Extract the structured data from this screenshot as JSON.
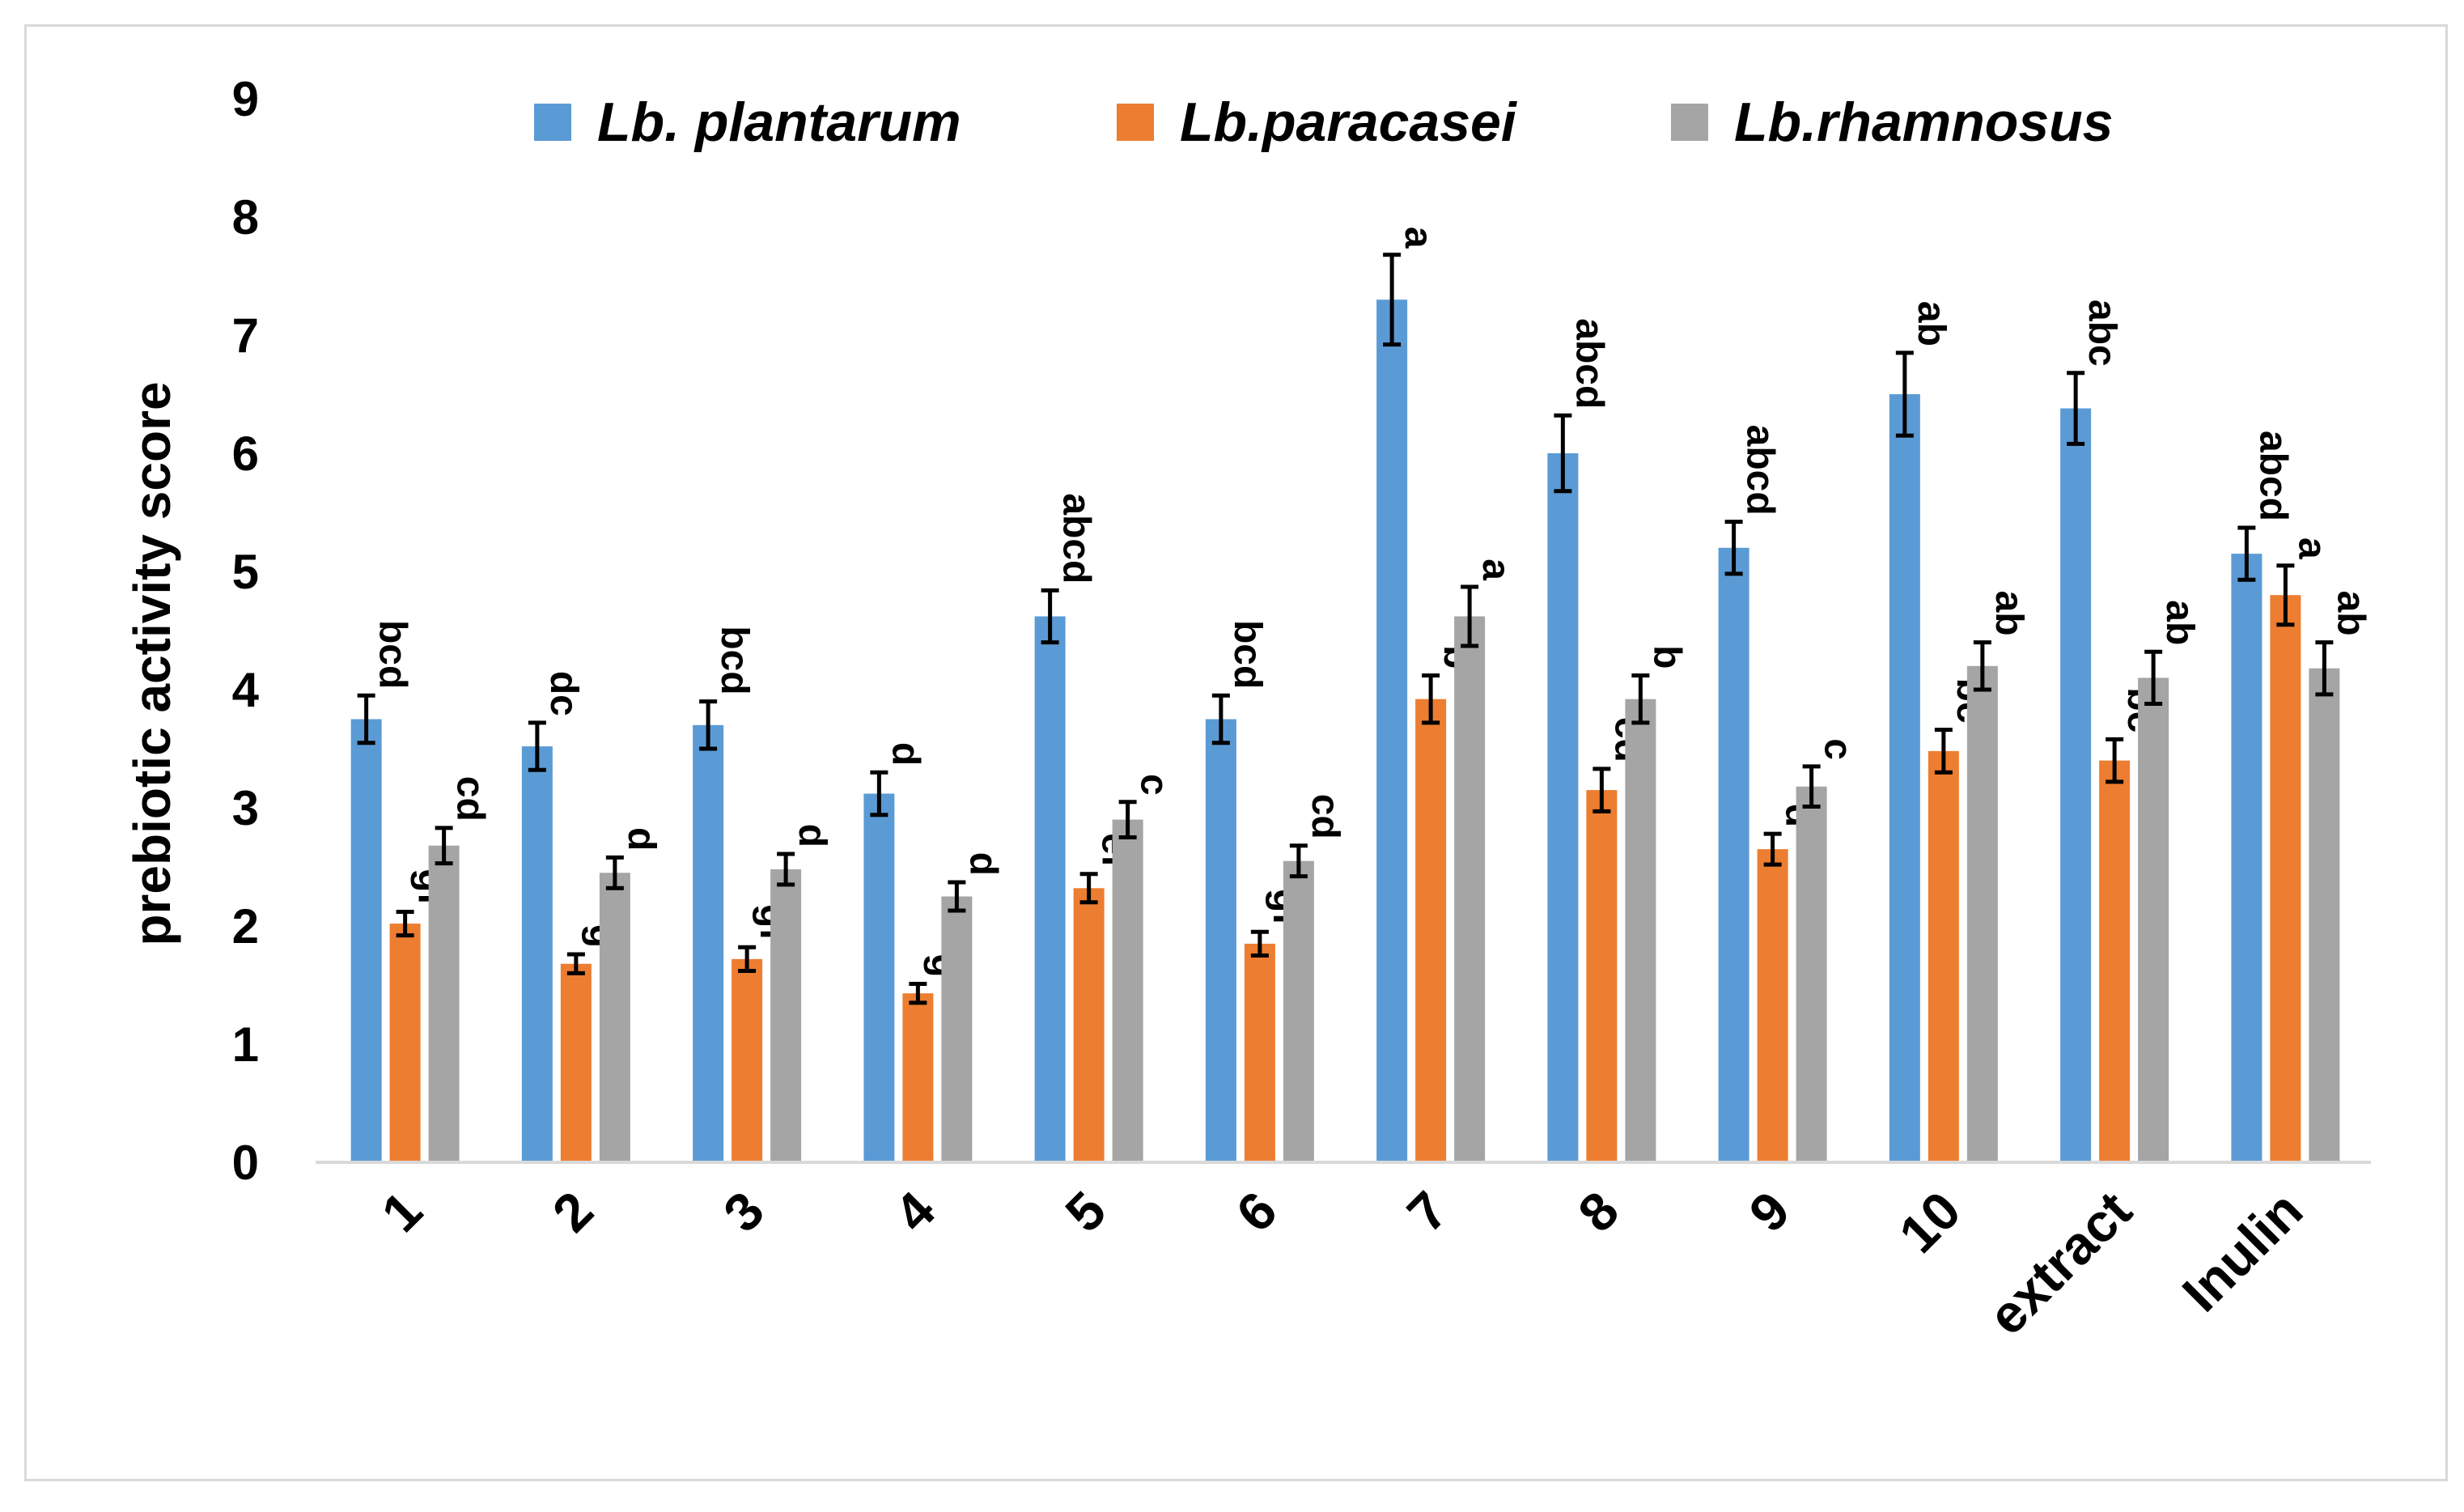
{
  "chart_data": {
    "type": "bar",
    "title": "",
    "xlabel": "",
    "ylabel": "prebiotic activity score",
    "ylim": [
      0,
      9
    ],
    "yticks": [
      0,
      1,
      2,
      3,
      4,
      5,
      6,
      7,
      8,
      9
    ],
    "grid": false,
    "legend_position": "top",
    "categories": [
      "1",
      "2",
      "3",
      "4",
      "5",
      "6",
      "7",
      "8",
      "9",
      "10",
      "extract",
      "Inulin"
    ],
    "series": [
      {
        "name": "Lb. plantarum",
        "color": "#5b9bd5",
        "values": [
          3.75,
          3.52,
          3.7,
          3.12,
          4.62,
          3.75,
          7.3,
          6.0,
          5.2,
          6.5,
          6.38,
          5.15
        ],
        "errors": [
          0.2,
          0.2,
          0.2,
          0.18,
          0.22,
          0.2,
          0.38,
          0.32,
          0.22,
          0.35,
          0.3,
          0.22
        ],
        "labels": [
          "bcd",
          "dc",
          "bcd",
          "d",
          "abcd",
          "bcd",
          "a",
          "abcd",
          "abcd",
          "ab",
          "abc",
          "abcd"
        ]
      },
      {
        "name": "Lb.paracasei",
        "color": "#ed7d31",
        "values": [
          2.02,
          1.68,
          1.72,
          1.43,
          2.32,
          1.85,
          3.92,
          3.15,
          2.65,
          3.48,
          3.4,
          4.8
        ],
        "errors": [
          0.1,
          0.08,
          0.1,
          0.08,
          0.12,
          0.1,
          0.2,
          0.18,
          0.13,
          0.18,
          0.18,
          0.25
        ],
        "labels": [
          "gf",
          "g",
          "gf",
          "g",
          "ef",
          "gf",
          "b",
          "cd",
          "d",
          "bc",
          "bc",
          "a"
        ]
      },
      {
        "name": "Lb.rhamnosus",
        "color": "#a5a5a5",
        "values": [
          2.68,
          2.45,
          2.48,
          2.25,
          2.9,
          2.55,
          4.62,
          3.92,
          3.18,
          4.2,
          4.1,
          4.18
        ],
        "errors": [
          0.15,
          0.13,
          0.13,
          0.12,
          0.15,
          0.13,
          0.25,
          0.2,
          0.17,
          0.2,
          0.22,
          0.22
        ],
        "labels": [
          "cd",
          "d",
          "d",
          "d",
          "c",
          "cd",
          "a",
          "b",
          "c",
          "ab",
          "ab",
          "ab"
        ]
      }
    ]
  }
}
